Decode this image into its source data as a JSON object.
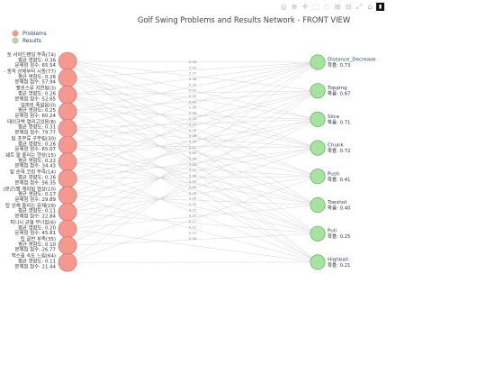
{
  "toolbar": {
    "icons": [
      "camera-icon",
      "zoom-icon",
      "plus-icon",
      "select-box-icon",
      "lasso-icon",
      "zoom-in-icon",
      "zoom-out-icon",
      "autoscale-icon",
      "reset-axes-icon",
      "plotly-logo"
    ],
    "glyphs": [
      "◎",
      "⊕",
      "✛",
      "⬚",
      "◌",
      "⊞",
      "⊟",
      "⤢",
      "⌂",
      "▮"
    ]
  },
  "chart_data": {
    "type": "network",
    "title": "Golf Swing Problems and Results Network - FRONT VIEW",
    "legend": [
      {
        "name": "Problems",
        "color": "#f4978e"
      },
      {
        "name": "Results",
        "color": "#a6e3a1"
      }
    ],
    "problem_nodes": [
      {
        "lines": [
          "토 사이드밴딩 부족(74)",
          "평균 영향도: 0.36",
          "문제점 점수: 65.54"
        ]
      },
      {
        "lines": [
          "- 동적 상체부터 시동(77)",
          "평균 영향도: 0.26",
          "문제점 점수: 57.94"
        ]
      },
      {
        "lines": [
          "팔로스루 지연됨(3)",
          "평균 영향도: 0.26",
          "문제점 점수: 52.65"
        ]
      },
      {
        "lines": [
          "업퍼컷 폭넓음(0)",
          "평균 영향도: 0.25",
          "문제점 점수: 60.24"
        ]
      },
      {
        "lines": [
          "테이크백 열리고있음(8)",
          "평균 영향도: 0.31",
          "문제점 점수: 79.77"
        ]
      },
      {
        "lines": [
          "탑 포부류 구부림(30)",
          "평균 영향도: 0.26",
          "문제점 점수: 65.07"
        ]
      },
      {
        "lines": [
          "쉐트 팔 올리는 현상(15)",
          "평균 영향도: 0.22",
          "문제점 점수: 34.43"
        ]
      },
      {
        "lines": [
          "탑 손목 코킹 부족(14)",
          "평균 영향도: 0.26",
          "문제점 점수: 56.35"
        ]
      },
      {
        "lines": [
          "(문근)팔 레이팅 현상(10)",
          "평균 영향도: 0.17",
          "문제점 점수: 29.89"
        ]
      },
      {
        "lines": [
          "탑 상체 들리는 문제(29)",
          "평균 영향도: 0.11",
          "문제점 점수: 22.84"
        ]
      },
      {
        "lines": [
          "피니시 균형 무너짐(6)",
          "평균 영향도: 0.20",
          "문제점 점수: 45.81"
        ]
      },
      {
        "lines": [
          "팁 골반 부족(35)",
          "평균 영향도: 0.10",
          "문제점 점수: 26.77"
        ]
      },
      {
        "lines": [
          "백스윙 속도 느림(64)",
          "평균 영향도: 0.11",
          "문제점 점수: 21.44"
        ]
      }
    ],
    "result_nodes": [
      {
        "name": "Distance_Decrease",
        "prob": "확률: 0.73"
      },
      {
        "name": "Topping",
        "prob": "확률: 0.67"
      },
      {
        "name": "Slice",
        "prob": "확률: 0.71"
      },
      {
        "name": "Chunk",
        "prob": "확률: 0.72"
      },
      {
        "name": "Push",
        "prob": "확률: 0.41"
      },
      {
        "name": "Toeshot",
        "prob": "확률: 0.40"
      },
      {
        "name": "Pull",
        "prob": "확률: 0.25"
      },
      {
        "name": "Highball",
        "prob": "확률: 0.21"
      }
    ],
    "edge_labels": [
      "0.48",
      "0.43",
      "0.37",
      "0.38",
      "0.35",
      "0.37",
      "0.32",
      "0.40",
      "0.36",
      "0.38",
      "0.33",
      "0.25",
      "0.28",
      "0.26",
      "0.35",
      "0.21",
      "0.42",
      "0.39",
      "0.45",
      "0.31",
      "0.30",
      "0.32",
      "0.29",
      "0.28",
      "0.26",
      "0.30",
      "0.25",
      "0.22",
      "0.17",
      "0.15",
      "0.13",
      "0.08"
    ],
    "edges": [
      [
        0,
        0
      ],
      [
        0,
        1
      ],
      [
        0,
        2
      ],
      [
        0,
        3
      ],
      [
        0,
        5
      ],
      [
        0,
        6
      ],
      [
        0,
        7
      ],
      [
        1,
        0
      ],
      [
        1,
        2
      ],
      [
        1,
        3
      ],
      [
        1,
        4
      ],
      [
        1,
        7
      ],
      [
        2,
        0
      ],
      [
        2,
        1
      ],
      [
        2,
        3
      ],
      [
        2,
        4
      ],
      [
        2,
        5
      ],
      [
        2,
        6
      ],
      [
        3,
        0
      ],
      [
        3,
        1
      ],
      [
        3,
        2
      ],
      [
        3,
        5
      ],
      [
        3,
        7
      ],
      [
        4,
        0
      ],
      [
        4,
        2
      ],
      [
        4,
        3
      ],
      [
        4,
        4
      ],
      [
        4,
        6
      ],
      [
        4,
        7
      ],
      [
        5,
        0
      ],
      [
        5,
        1
      ],
      [
        5,
        3
      ],
      [
        5,
        5
      ],
      [
        5,
        6
      ],
      [
        6,
        1
      ],
      [
        6,
        2
      ],
      [
        6,
        4
      ],
      [
        6,
        5
      ],
      [
        6,
        7
      ],
      [
        7,
        0
      ],
      [
        7,
        2
      ],
      [
        7,
        3
      ],
      [
        7,
        4
      ],
      [
        7,
        6
      ],
      [
        8,
        1
      ],
      [
        8,
        3
      ],
      [
        8,
        5
      ],
      [
        8,
        7
      ],
      [
        9,
        0
      ],
      [
        9,
        2
      ],
      [
        9,
        4
      ],
      [
        9,
        6
      ],
      [
        10,
        1
      ],
      [
        10,
        3
      ],
      [
        10,
        5
      ],
      [
        10,
        7
      ],
      [
        11,
        0
      ],
      [
        11,
        2
      ],
      [
        11,
        6
      ],
      [
        12,
        1
      ],
      [
        12,
        4
      ],
      [
        12,
        7
      ]
    ]
  }
}
